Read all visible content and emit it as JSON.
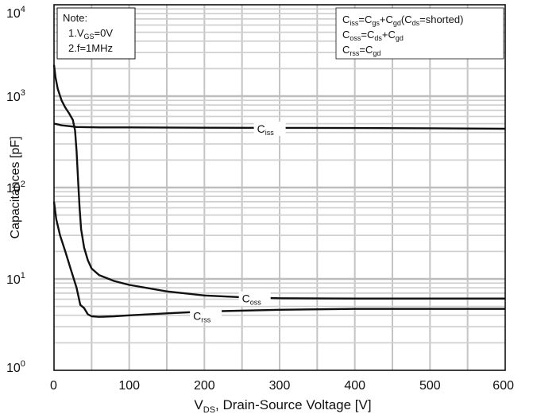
{
  "chart_data": {
    "type": "line",
    "x_scale": "linear",
    "y_scale": "log",
    "xlim": [
      0,
      600
    ],
    "ylim": [
      1,
      10000
    ],
    "grid": true,
    "x_ticks": [
      "0",
      "100",
      "200",
      "300",
      "400",
      "500",
      "600"
    ],
    "y_ticks": [
      {
        "base": "10",
        "exp": "0"
      },
      {
        "base": "10",
        "exp": "1"
      },
      {
        "base": "10",
        "exp": "2"
      },
      {
        "base": "10",
        "exp": "3"
      },
      {
        "base": "10",
        "exp": "4"
      }
    ],
    "xlabel": {
      "pre": "V",
      "sub": "DS",
      "post": ", Drain-Source Voltage [V]"
    },
    "ylabel": "Capacitances [pF]",
    "note": {
      "title": "Note:",
      "line1": {
        "pre": "1.V",
        "sub": "GS",
        "post": "=0V"
      },
      "line2": "2.f=1MHz"
    },
    "legend_lines": [
      [
        {
          "t": "C"
        },
        {
          "s": "iss"
        },
        {
          "t": "=C"
        },
        {
          "s": "gs"
        },
        {
          "t": "+C"
        },
        {
          "s": "gd"
        },
        {
          "t": "(C"
        },
        {
          "s": "ds"
        },
        {
          "t": "=shorted)"
        }
      ],
      [
        {
          "t": "C"
        },
        {
          "s": "oss"
        },
        {
          "t": "=C"
        },
        {
          "s": "ds"
        },
        {
          "t": "+C"
        },
        {
          "s": "gd"
        }
      ],
      [
        {
          "t": "C"
        },
        {
          "s": "rss"
        },
        {
          "t": "=C"
        },
        {
          "s": "gd"
        }
      ]
    ],
    "series": [
      {
        "name": "Ciss",
        "label": {
          "main": "C",
          "sub": "iss"
        },
        "label_at": [
          270,
          440
        ],
        "points": [
          [
            0,
            500
          ],
          [
            5,
            490
          ],
          [
            10,
            480
          ],
          [
            20,
            470
          ],
          [
            30,
            460
          ],
          [
            60,
            455
          ],
          [
            100,
            455
          ],
          [
            200,
            452
          ],
          [
            300,
            450
          ],
          [
            400,
            448
          ],
          [
            500,
            445
          ],
          [
            600,
            440
          ]
        ]
      },
      {
        "name": "Coss",
        "label": {
          "main": "C",
          "sub": "oss"
        },
        "label_at": [
          250,
          6.1
        ],
        "points": [
          [
            0,
            2200
          ],
          [
            2,
            1600
          ],
          [
            5,
            1200
          ],
          [
            10,
            900
          ],
          [
            15,
            750
          ],
          [
            20,
            650
          ],
          [
            25,
            550
          ],
          [
            28,
            420
          ],
          [
            30,
            250
          ],
          [
            32,
            120
          ],
          [
            34,
            60
          ],
          [
            36,
            35
          ],
          [
            40,
            22
          ],
          [
            45,
            16
          ],
          [
            50,
            13
          ],
          [
            60,
            11
          ],
          [
            80,
            9.5
          ],
          [
            100,
            8.6
          ],
          [
            150,
            7.3
          ],
          [
            200,
            6.6
          ],
          [
            250,
            6.3
          ],
          [
            300,
            6.15
          ],
          [
            400,
            6.1
          ],
          [
            600,
            6.1
          ]
        ]
      },
      {
        "name": "Crss",
        "label": {
          "main": "C",
          "sub": "rss"
        },
        "label_at": [
          185,
          3.95
        ],
        "points": [
          [
            0,
            70
          ],
          [
            3,
            45
          ],
          [
            8,
            30
          ],
          [
            15,
            20
          ],
          [
            22,
            13
          ],
          [
            30,
            8
          ],
          [
            35,
            5.2
          ],
          [
            40,
            4.8
          ],
          [
            45,
            4.1
          ],
          [
            50,
            3.9
          ],
          [
            60,
            3.85
          ],
          [
            80,
            3.9
          ],
          [
            100,
            4.0
          ],
          [
            150,
            4.2
          ],
          [
            200,
            4.4
          ],
          [
            300,
            4.6
          ],
          [
            400,
            4.7
          ],
          [
            600,
            4.7
          ]
        ]
      }
    ]
  }
}
